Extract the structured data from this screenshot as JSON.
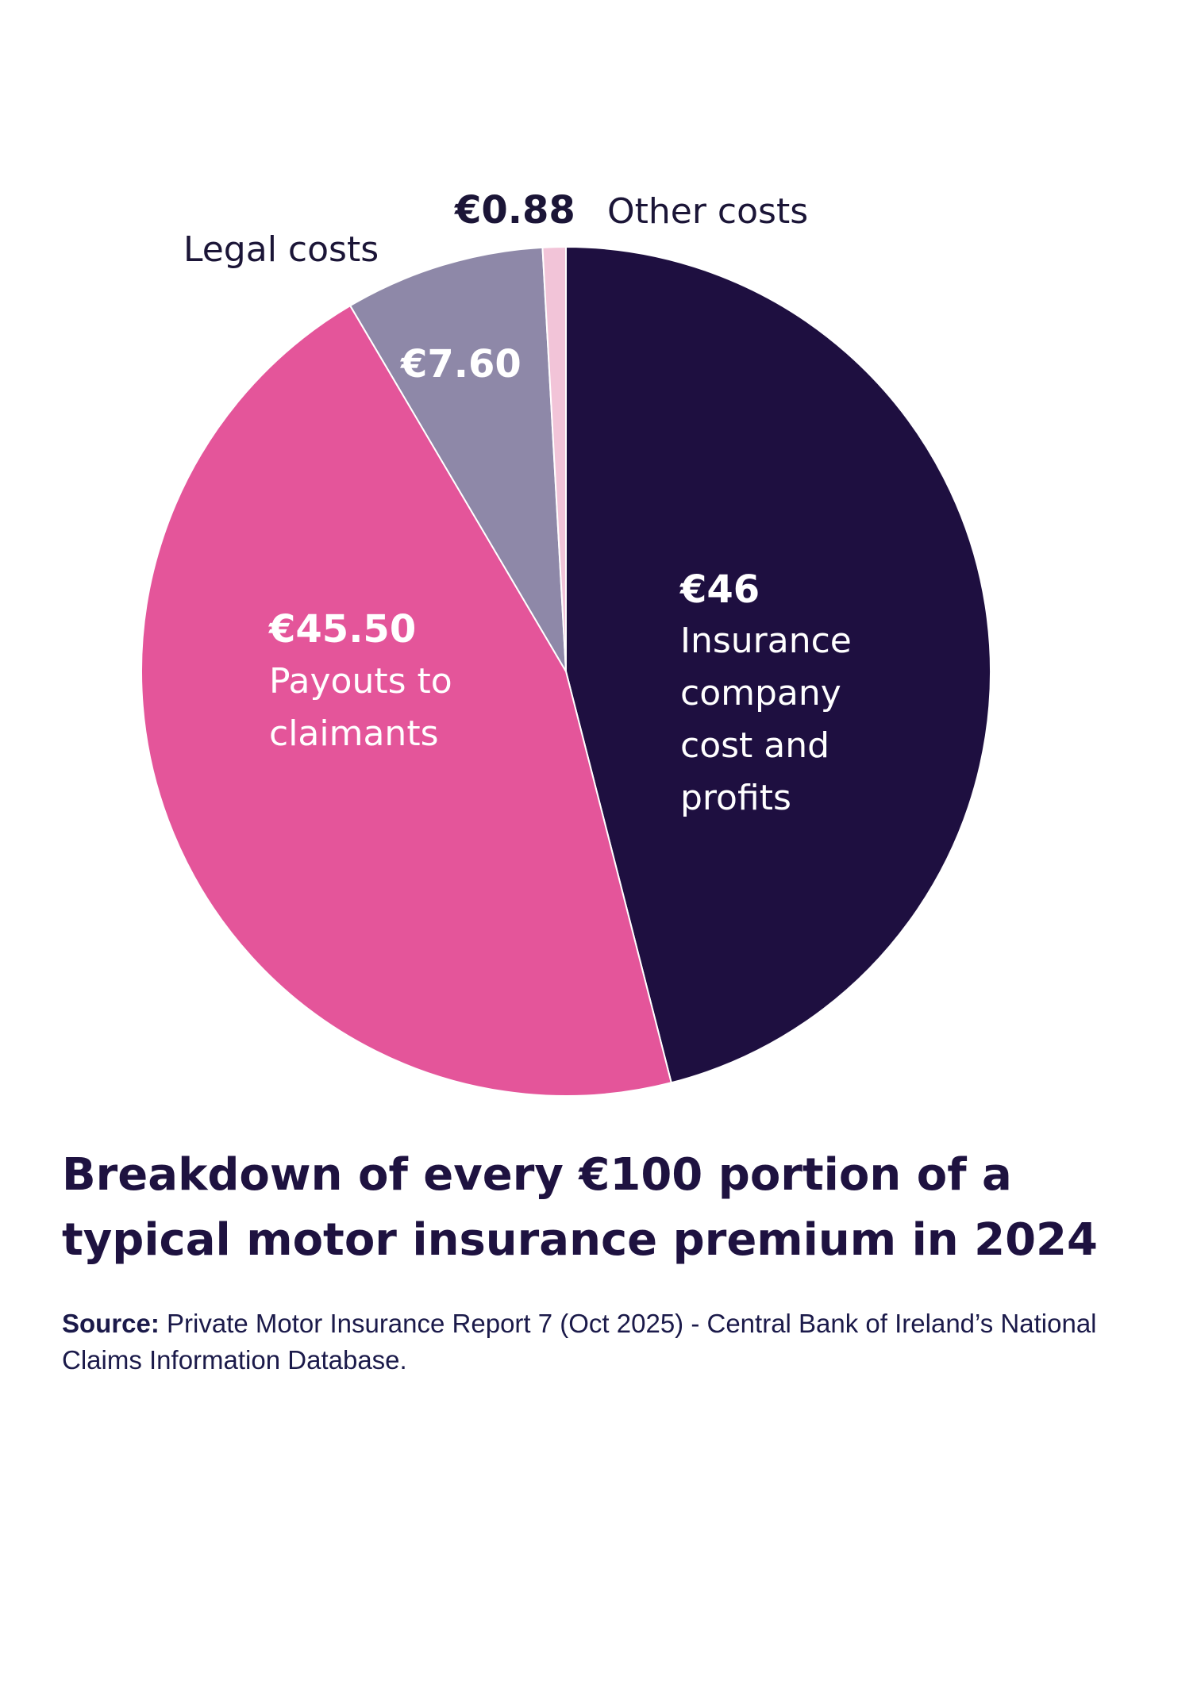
{
  "chart_data": {
    "type": "pie",
    "categories": [
      "Insurance company cost and profits",
      "Payouts to claimants",
      "Legal costs",
      "Other costs"
    ],
    "values": [
      46,
      45.5,
      7.6,
      0.88
    ],
    "value_labels": [
      "€46",
      "€45.50",
      "€7.60",
      "€0.88"
    ],
    "colors": [
      "#1e0f40",
      "#e4559a",
      "#8e88a8",
      "#f2c4d8"
    ],
    "title": "Breakdown of every €100 portion of a typical motor insurance premium in 2024",
    "source": {
      "label": "Source:",
      "text": "Private Motor Insurance Report 7 (Oct 2025) - Central Bank of Ireland’s National Claims Information Database."
    }
  }
}
